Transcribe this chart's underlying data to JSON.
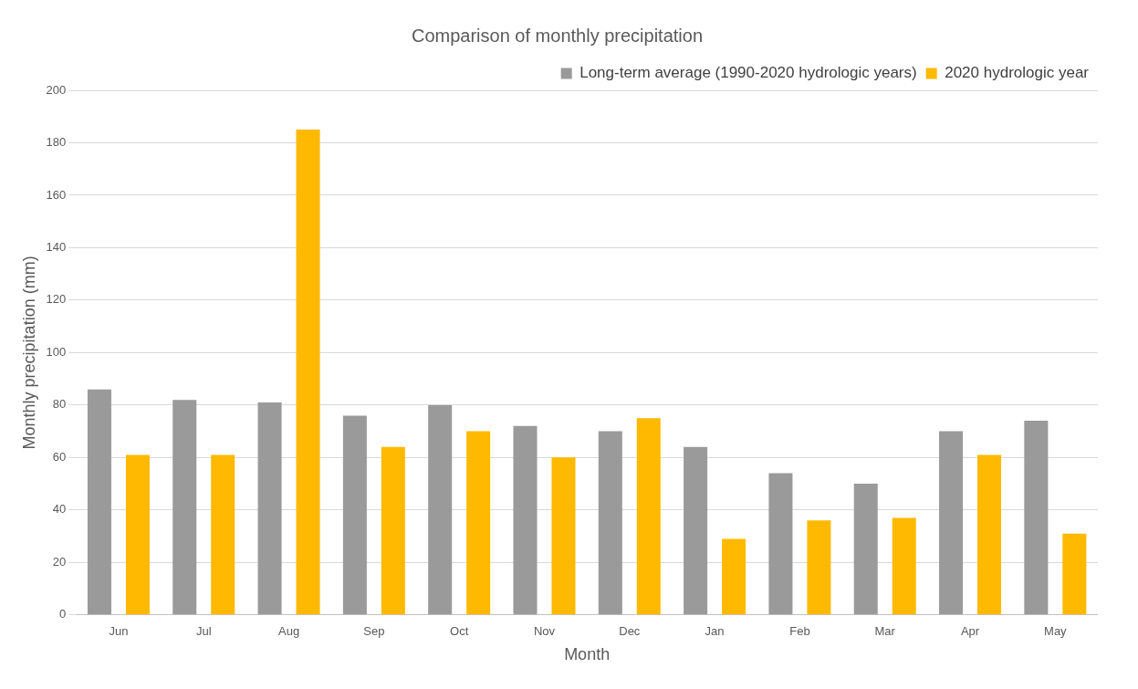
{
  "chart_data": {
    "type": "bar",
    "title": "Comparison of monthly precipitation",
    "xlabel": "Month",
    "ylabel": "Monthly precipitation (mm)",
    "categories": [
      "Jun",
      "Jul",
      "Aug",
      "Sep",
      "Oct",
      "Nov",
      "Dec",
      "Jan",
      "Feb",
      "Mar",
      "Apr",
      "May"
    ],
    "series": [
      {
        "name": "Long-term average (1990-2020 hydrologic years)",
        "color": "#9a9a9a",
        "values": [
          86,
          82,
          81,
          76,
          80,
          72,
          70,
          64,
          54,
          50,
          70,
          74
        ]
      },
      {
        "name": "2020 hydrologic year",
        "color": "#ffb900",
        "values": [
          61,
          61,
          185,
          64,
          70,
          60,
          75,
          29,
          36,
          37,
          61,
          31
        ]
      }
    ],
    "ylim": [
      0,
      200
    ],
    "yticks": [
      0,
      20,
      40,
      60,
      80,
      100,
      120,
      140,
      160,
      180,
      200
    ],
    "grid": "y",
    "legend": "top right"
  }
}
